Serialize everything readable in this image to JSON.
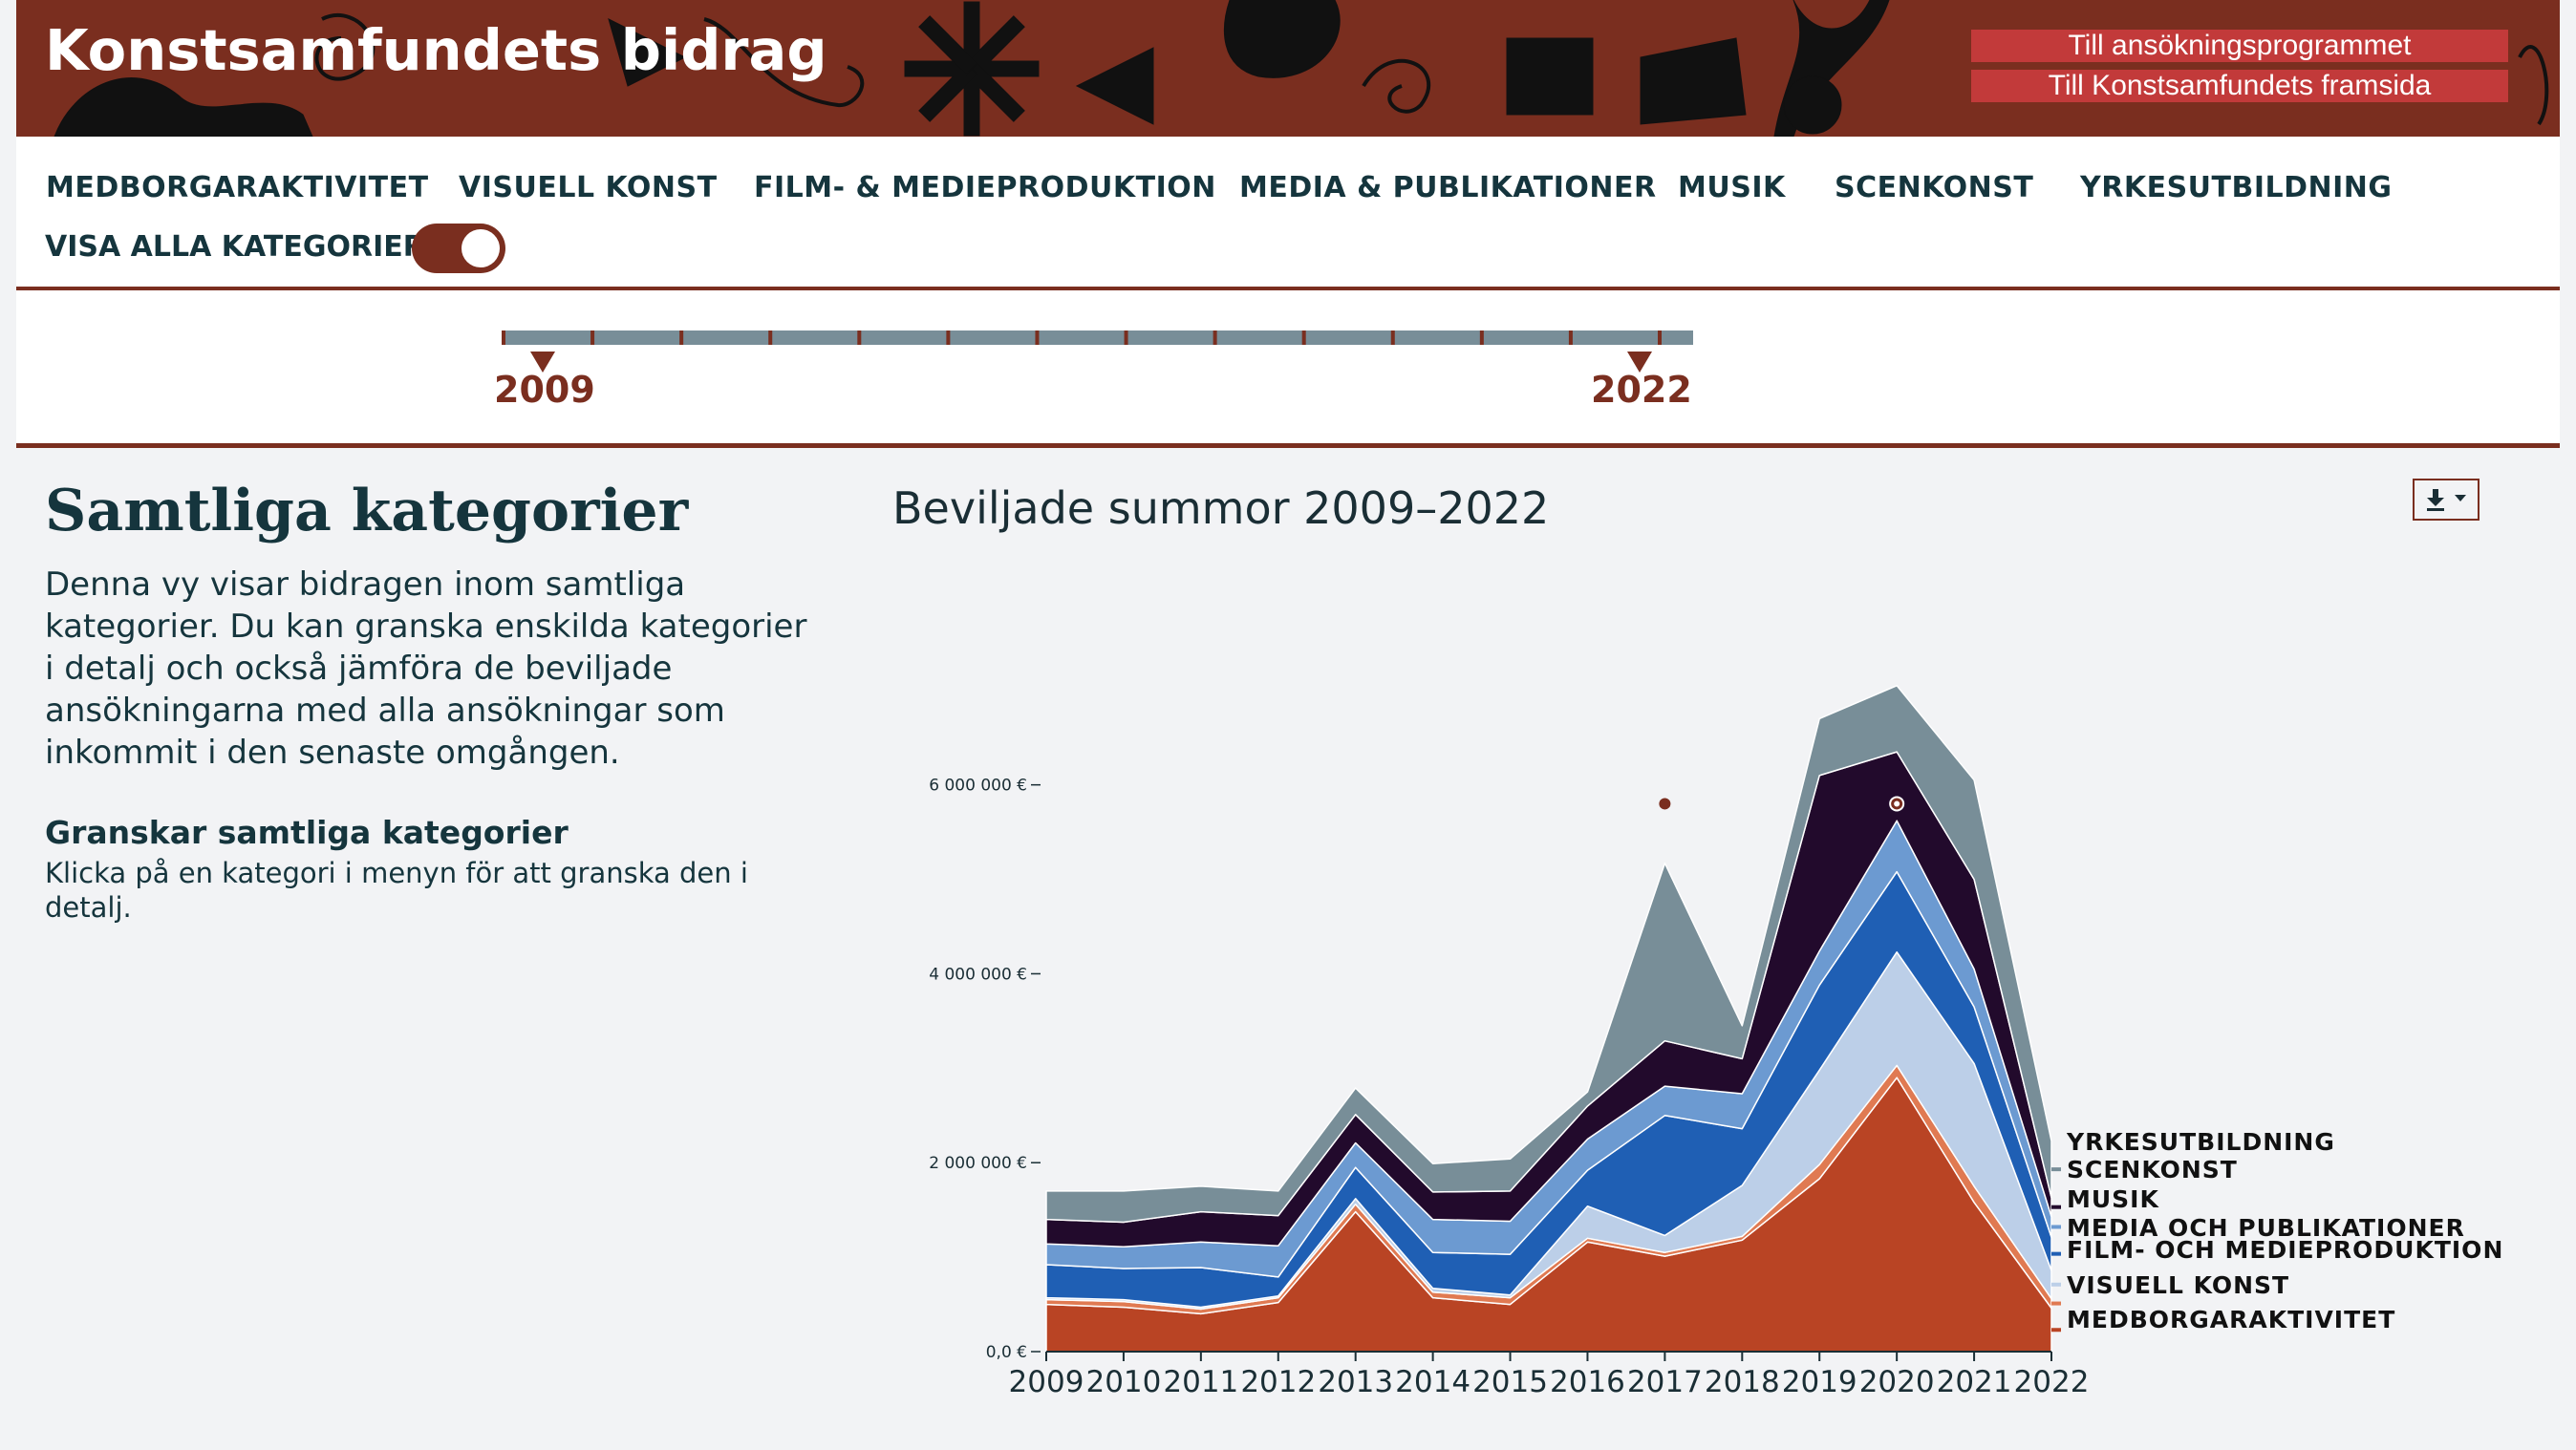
{
  "header": {
    "title": "Konstsamfundets bidrag",
    "links": [
      "Till ansökningsprogrammet",
      "Till Konstsamfundets framsida"
    ],
    "colors": {
      "background": "#7a2e1f",
      "link_background": "#c23a3a",
      "decor": "#111111"
    }
  },
  "nav": {
    "items": [
      "MEDBORGARAKTIVITET",
      "VISUELL KONST",
      "FILM- & MEDIEPRODUKTION",
      "MEDIA & PUBLIKATIONER",
      "MUSIK",
      "SCENKONST",
      "YRKESUTBILDNING"
    ],
    "toggle_label": "VISA ALLA KATEGORIER:",
    "toggle_on": true
  },
  "timeline": {
    "start": "2009",
    "end": "2022"
  },
  "panel": {
    "title": "Samtliga kategorier",
    "description": "Denna vy visar bidragen inom samtliga kategorier. Du kan granska enskilda kategorier i detalj och också jämföra de beviljade ansökningarna med alla ansökningar som inkommit i den senaste omgången.",
    "subtitle": "Granskar samtliga kategorier",
    "hint": "Klicka på en kategori i menyn för att granska den i detalj."
  },
  "download_icon": "download-icon",
  "chart_data": {
    "type": "area",
    "stacked": true,
    "title": "Beviljade summor  2009–2022",
    "x": [
      2009,
      2010,
      2011,
      2012,
      2013,
      2014,
      2015,
      2016,
      2017,
      2018,
      2019,
      2020,
      2021,
      2022
    ],
    "x_tick_labels": [
      "2009",
      "2010",
      "2011",
      "2012",
      "2013",
      "2014",
      "2015",
      "2016",
      "2017",
      "2018",
      "2019",
      "2020",
      "2021",
      "2022"
    ],
    "ylim": [
      0,
      7200000
    ],
    "y_ticks": [
      0,
      2000000,
      4000000,
      6000000
    ],
    "y_tick_labels": [
      "0,0 €",
      "2 000 000 €",
      "4 000 000 €",
      "6 000 000 €"
    ],
    "legend_position": "right",
    "series": [
      {
        "name": "MEDBORGARAKTIVITET",
        "color": "#b94424",
        "values": [
          500000,
          470000,
          400000,
          520000,
          1480000,
          570000,
          500000,
          1160000,
          1010000,
          1180000,
          1830000,
          2900000,
          1580000,
          460000
        ]
      },
      {
        "name": "VISUELL KONST",
        "color": "#e07a52",
        "values": [
          50000,
          60000,
          50000,
          50000,
          80000,
          60000,
          70000,
          40000,
          40000,
          40000,
          150000,
          130000,
          170000,
          100000
        ]
      },
      {
        "name": "FILM- OCH MEDIEPRODUKTION",
        "color": "#bccfe8",
        "values": [
          20000,
          20000,
          20000,
          20000,
          60000,
          40000,
          30000,
          340000,
          180000,
          540000,
          1000000,
          1200000,
          1300000,
          300000
        ]
      },
      {
        "name": "MEDIA OCH PUBLIKATIONER",
        "color": "#1f5fb4",
        "values": [
          350000,
          330000,
          420000,
          200000,
          330000,
          380000,
          430000,
          380000,
          1270000,
          600000,
          900000,
          850000,
          600000,
          350000
        ]
      },
      {
        "name": "MUSIK",
        "color": "#6c9ad1",
        "values": [
          220000,
          230000,
          270000,
          330000,
          260000,
          350000,
          350000,
          330000,
          310000,
          370000,
          360000,
          540000,
          400000,
          220000
        ]
      },
      {
        "name": "SCENKONST",
        "color": "#220a2c",
        "values": [
          260000,
          260000,
          320000,
          320000,
          300000,
          290000,
          320000,
          350000,
          480000,
          370000,
          1860000,
          730000,
          950000,
          200000
        ]
      },
      {
        "name": "YRKESUTBILDNING",
        "color": "#788e98",
        "values": [
          300000,
          330000,
          270000,
          260000,
          280000,
          300000,
          340000,
          150000,
          1880000,
          350000,
          600000,
          700000,
          1050000,
          600000
        ]
      }
    ],
    "markers": [
      {
        "x": 2017,
        "y": 5800000,
        "style": "dot"
      },
      {
        "x": 2020,
        "y": 5800000,
        "style": "ring"
      }
    ]
  }
}
